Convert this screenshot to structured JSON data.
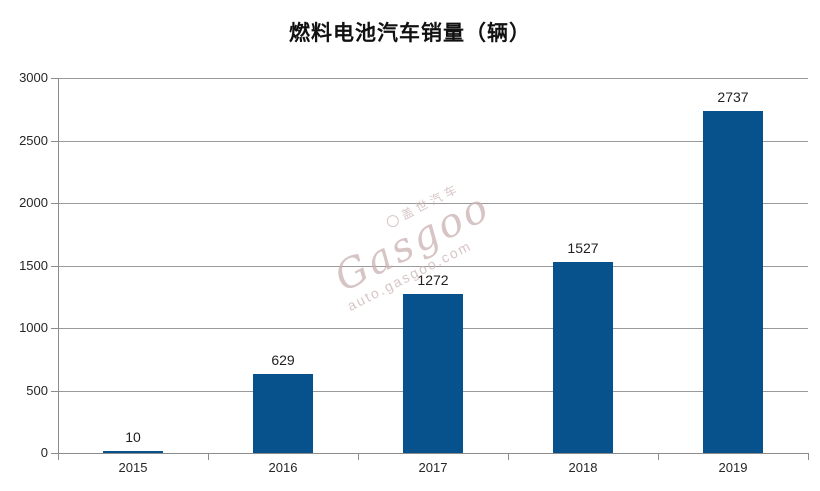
{
  "chart_data": {
    "type": "bar",
    "title": "燃料电池汽车销量（辆）",
    "categories": [
      "2015",
      "2016",
      "2017",
      "2018",
      "2019"
    ],
    "values": [
      10,
      629,
      1272,
      1527,
      2737
    ],
    "value_labels": [
      "10",
      "629",
      "1272",
      "1527",
      "2737"
    ],
    "xlabel": "",
    "ylabel": "",
    "ylim": [
      0,
      3000
    ],
    "y_ticks": [
      0,
      500,
      1000,
      1500,
      2000,
      2500,
      3000
    ],
    "grid": true,
    "legend": "none",
    "bar_color": "#07528C",
    "gridline_color": "#9a9a9a",
    "axis_color": "#8c8c8c",
    "tick_label_color": "#262626",
    "value_label_color": "#1f1f1f",
    "background_color": "#ffffff"
  },
  "watermark": {
    "logo_icon": "gasgoo-circle-logo",
    "brand_cn": "盖世汽车",
    "brand_en": "Gasgoo",
    "url": "auto.gasgoo.com"
  }
}
